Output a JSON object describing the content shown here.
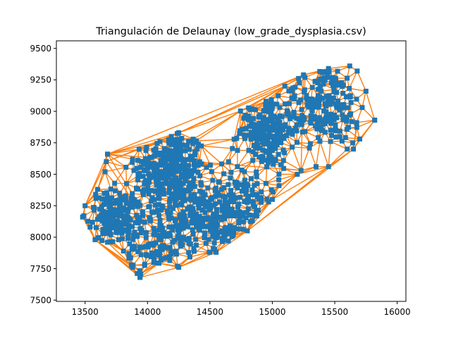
{
  "chart_data": {
    "type": "scatter",
    "title": "Triangulación de Delaunay (low_grade_dysplasia.csv)",
    "xlabel": "",
    "ylabel": "",
    "xlim": [
      13270,
      16070
    ],
    "ylim": [
      7490,
      9560
    ],
    "xticks": [
      13500,
      14000,
      14500,
      15000,
      15500,
      16000
    ],
    "yticks": [
      7500,
      7750,
      8000,
      8250,
      8500,
      8750,
      9000,
      9250,
      9500
    ],
    "grid": false,
    "colors": {
      "edges": "#ff7f0e",
      "points": "#1f77b4"
    },
    "marker": "square",
    "point_clusters": [
      {
        "cx": 14180,
        "cy": 8550,
        "sx": 140,
        "sy": 150,
        "n": 320
      },
      {
        "cx": 13750,
        "cy": 8150,
        "sx": 110,
        "sy": 110,
        "n": 200
      },
      {
        "cx": 14300,
        "cy": 8150,
        "sx": 180,
        "sy": 140,
        "n": 200
      },
      {
        "cx": 14950,
        "cy": 8850,
        "sx": 110,
        "sy": 150,
        "n": 220
      },
      {
        "cx": 15400,
        "cy": 9050,
        "sx": 170,
        "sy": 160,
        "n": 220
      },
      {
        "cx": 14700,
        "cy": 8300,
        "sx": 180,
        "sy": 130,
        "n": 150
      },
      {
        "cx": 14600,
        "cy": 8050,
        "sx": 130,
        "sy": 90,
        "n": 80
      },
      {
        "cx": 14050,
        "cy": 7900,
        "sx": 120,
        "sy": 70,
        "n": 70
      },
      {
        "cx": 13920,
        "cy": 7720,
        "sx": 40,
        "sy": 40,
        "n": 14
      }
    ],
    "hull_points": [
      [
        13480,
        8160
      ],
      [
        13540,
        8080
      ],
      [
        13580,
        7980
      ],
      [
        13680,
        7960
      ],
      [
        13880,
        7760
      ],
      [
        13940,
        7680
      ],
      [
        14050,
        7800
      ],
      [
        14250,
        7760
      ],
      [
        14500,
        7880
      ],
      [
        14800,
        8050
      ],
      [
        15000,
        8300
      ],
      [
        15200,
        8500
      ],
      [
        15350,
        8560
      ],
      [
        15600,
        8700
      ],
      [
        15700,
        8780
      ],
      [
        15820,
        8930
      ],
      [
        15720,
        9030
      ],
      [
        15750,
        9160
      ],
      [
        15680,
        9320
      ],
      [
        15620,
        9360
      ],
      [
        15450,
        9340
      ],
      [
        15250,
        9290
      ],
      [
        15100,
        9200
      ],
      [
        14950,
        9080
      ],
      [
        14250,
        8830
      ],
      [
        14100,
        8760
      ],
      [
        13680,
        8660
      ],
      [
        13660,
        8520
      ],
      [
        13600,
        8380
      ],
      [
        13500,
        8250
      ]
    ],
    "outlier_points": [
      [
        15820,
        8930
      ],
      [
        15350,
        8560
      ],
      [
        15650,
        8700
      ],
      [
        14550,
        7880
      ],
      [
        13680,
        8660
      ],
      [
        13670,
        8600
      ],
      [
        13940,
        7680
      ],
      [
        13870,
        7780
      ],
      [
        14240,
        7770
      ],
      [
        15230,
        8530
      ],
      [
        15450,
        8560
      ],
      [
        13490,
        8170
      ]
    ]
  }
}
